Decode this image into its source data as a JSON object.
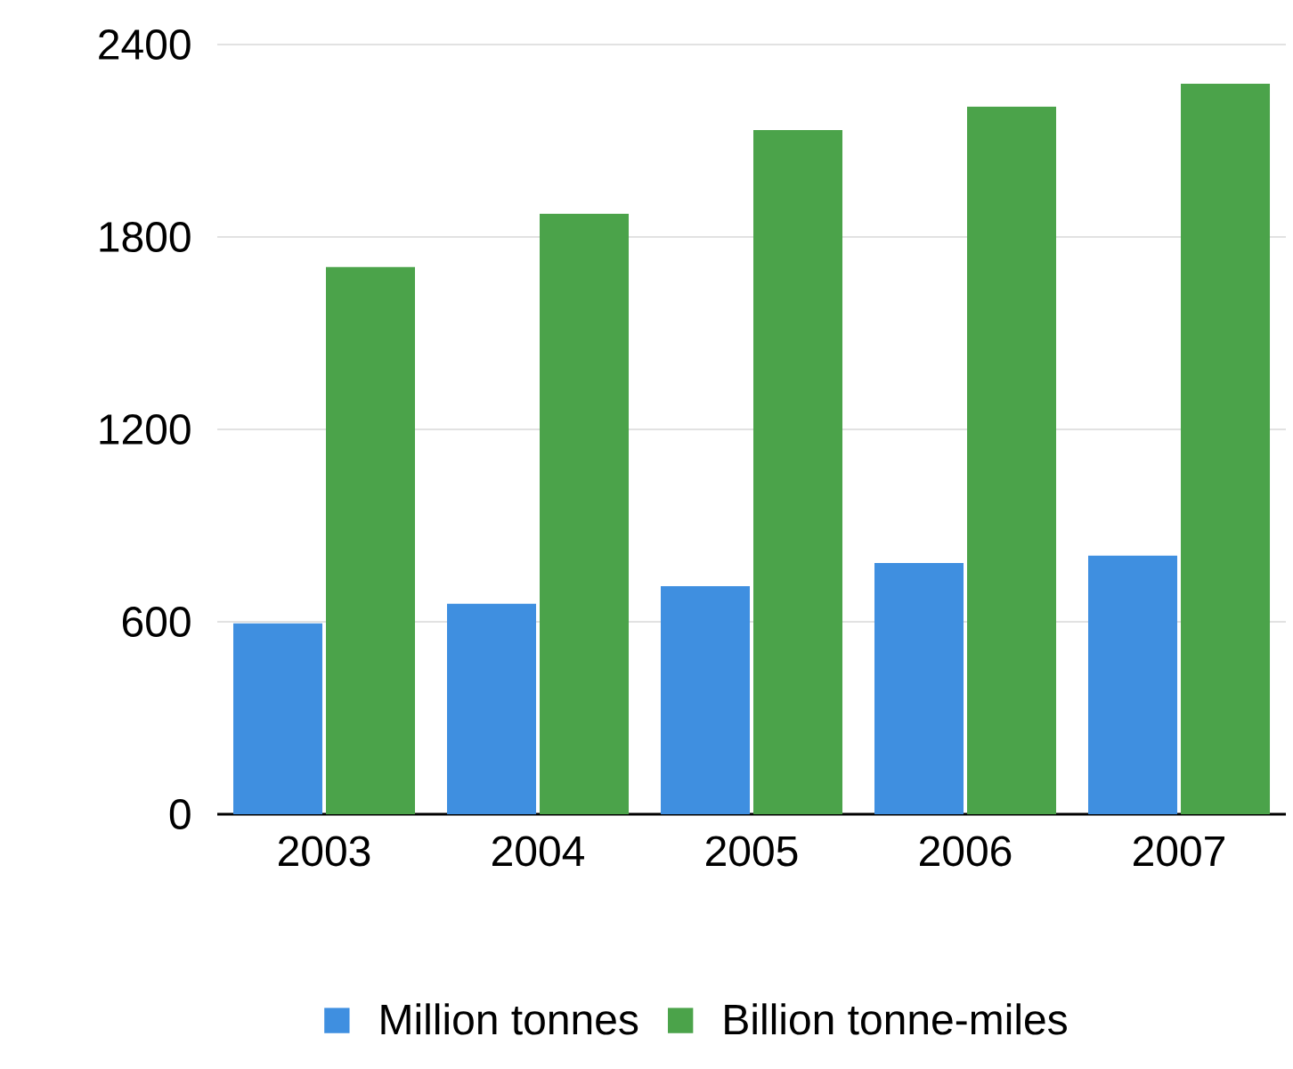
{
  "chart_data": {
    "type": "bar",
    "categories": [
      "2003",
      "2004",
      "2005",
      "2006",
      "2007"
    ],
    "series": [
      {
        "name": "Million tonnes",
        "color": "#3f8fe0",
        "values": [
          595,
          656,
          711,
          783,
          806
        ]
      },
      {
        "name": "Billion tonne-miles",
        "color": "#4ba34a",
        "values": [
          1706,
          1872,
          2133,
          2206,
          2278
        ]
      }
    ],
    "ylim": [
      0,
      2400
    ],
    "yticks": [
      0,
      600,
      1200,
      1800,
      2400
    ],
    "grid": "y",
    "legend": "bottom"
  }
}
